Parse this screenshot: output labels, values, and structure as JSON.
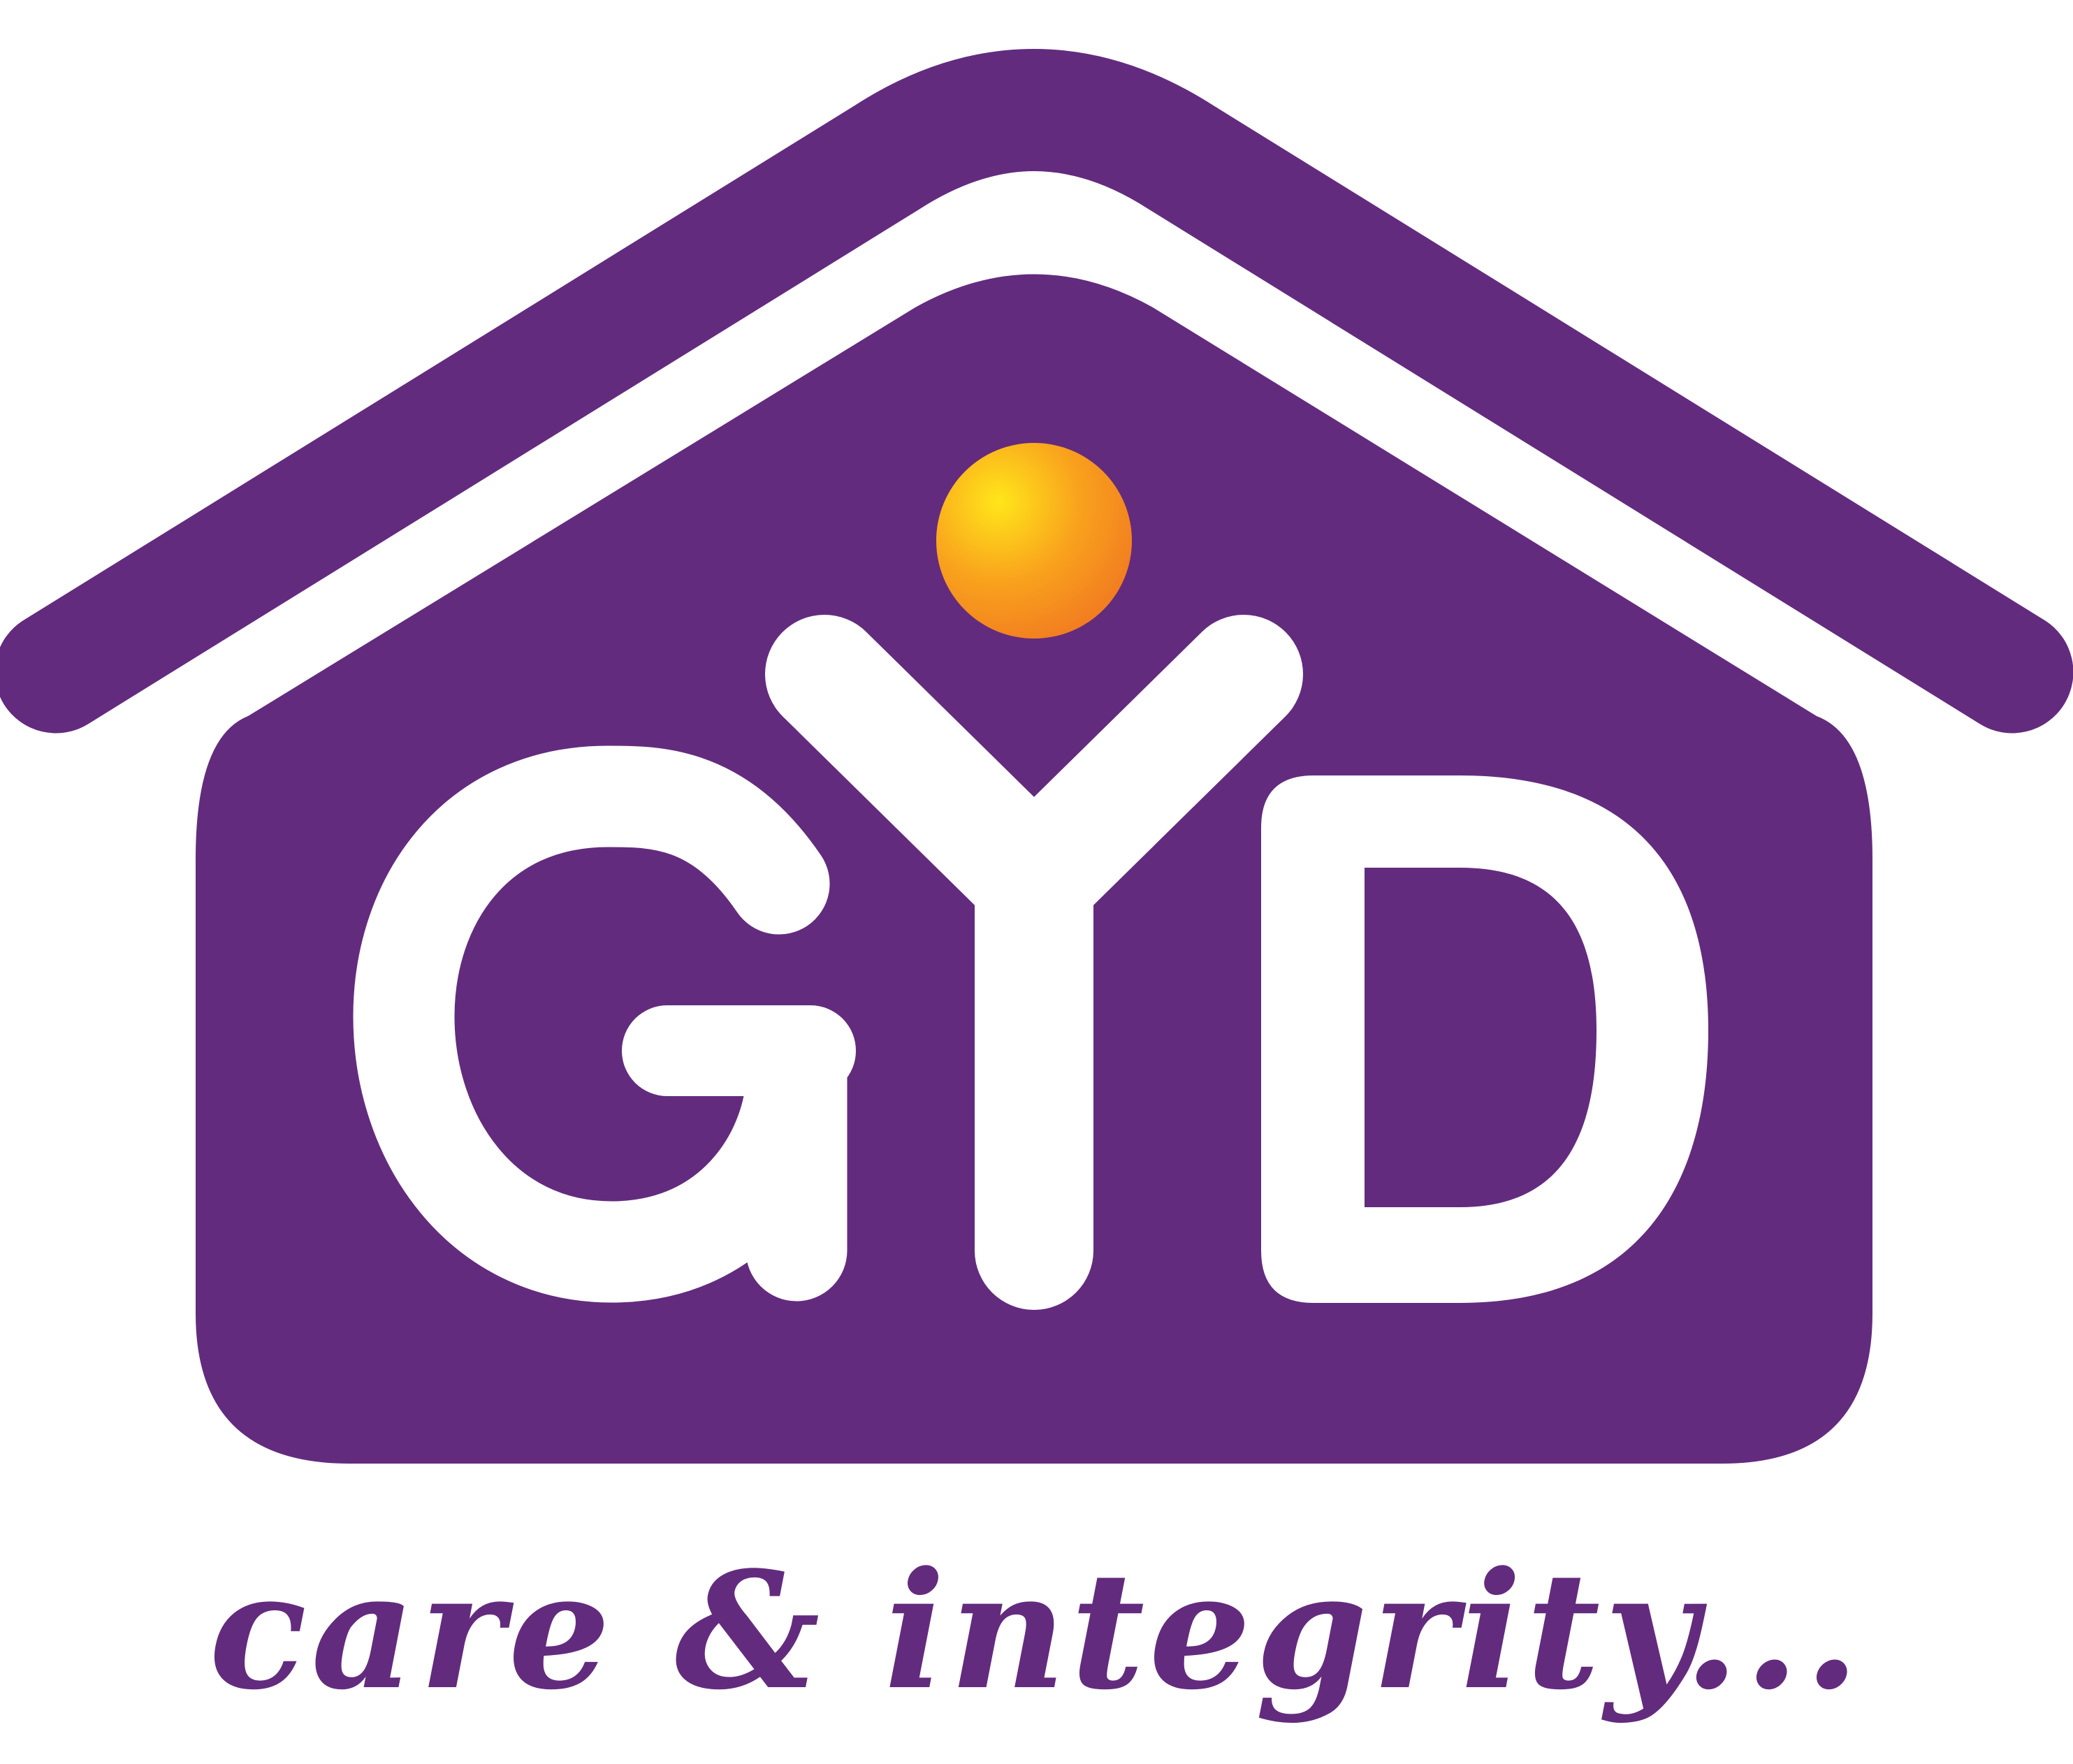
{
  "logo": {
    "brand_text": "GYD",
    "icon": "house-roof-icon",
    "accent_icon": "sun-dot-icon"
  },
  "tagline": "care & integrity...",
  "colors": {
    "brand_purple": "#632b7e",
    "letters": "#ffffff",
    "sun_light": "#ffe61a",
    "sun_dark": "#f28121",
    "background": "#ffffff"
  }
}
